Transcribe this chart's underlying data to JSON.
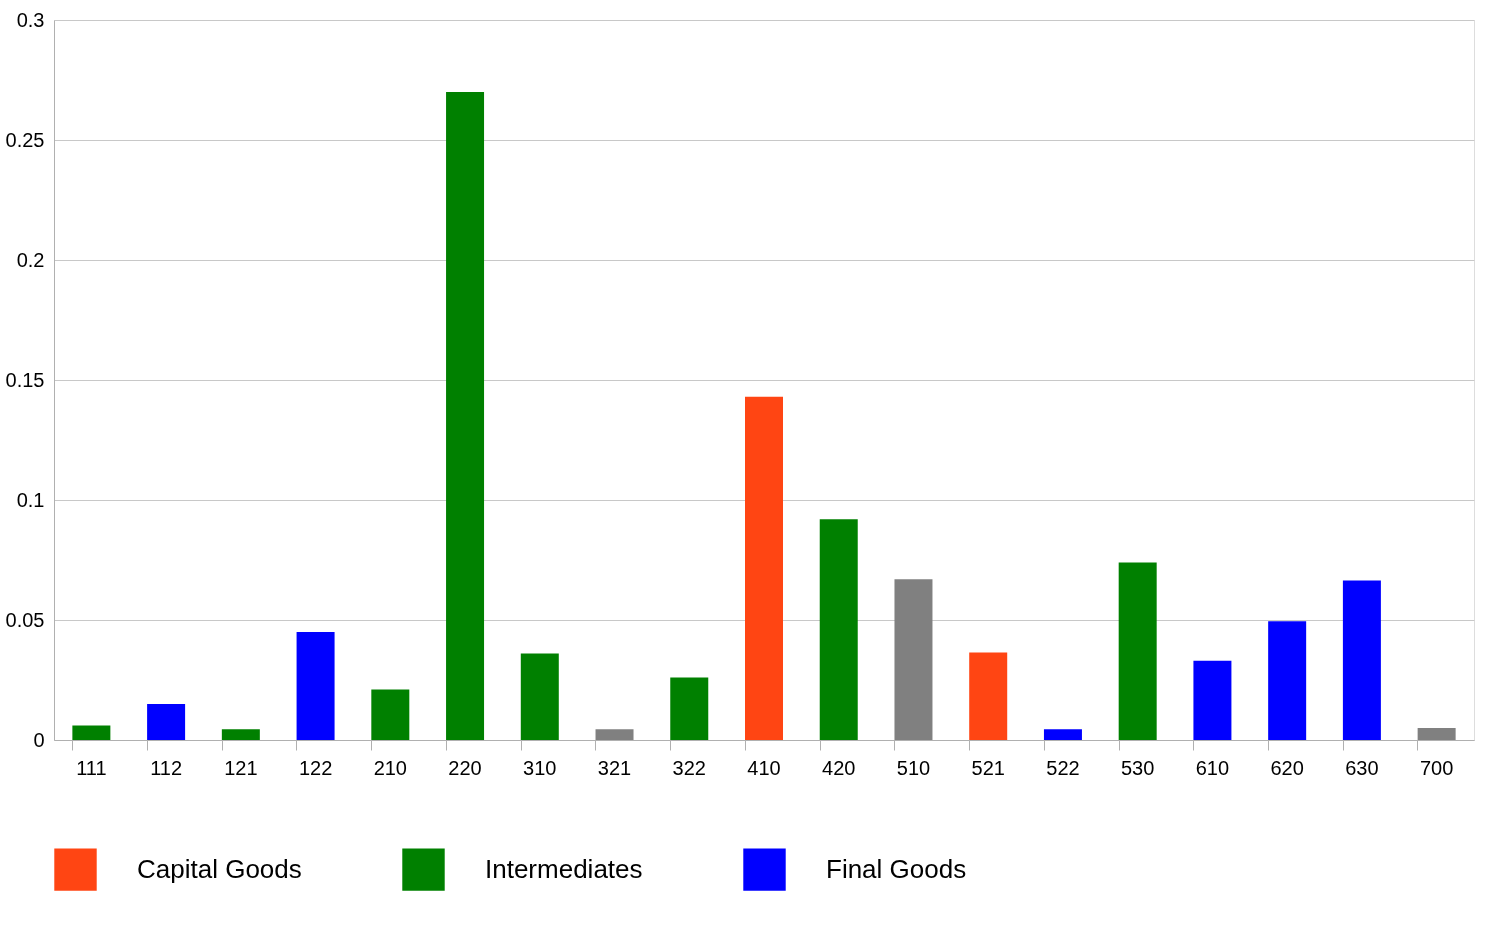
{
  "chart_data": {
    "type": "bar",
    "categories": [
      "111",
      "112",
      "121",
      "122",
      "210",
      "220",
      "310",
      "321",
      "322",
      "410",
      "420",
      "510",
      "521",
      "522",
      "530",
      "610",
      "620",
      "630",
      "700"
    ],
    "series": [
      {
        "name": "Capital Goods",
        "color": "#ff4513",
        "values": [
          null,
          null,
          null,
          null,
          null,
          null,
          null,
          null,
          null,
          0.143,
          null,
          null,
          0.0365,
          null,
          null,
          null,
          null,
          null,
          null
        ]
      },
      {
        "name": "Intermediates",
        "color": "#008000",
        "values": [
          0.006,
          null,
          0.0045,
          null,
          0.021,
          0.27,
          0.036,
          null,
          0.026,
          null,
          0.092,
          null,
          null,
          null,
          0.074,
          null,
          null,
          null,
          null
        ]
      },
      {
        "name": "Final Goods",
        "color": "#0000ff",
        "values": [
          null,
          0.015,
          null,
          0.045,
          null,
          null,
          null,
          null,
          null,
          null,
          null,
          null,
          null,
          0.0045,
          null,
          0.033,
          0.0495,
          0.0665,
          null
        ]
      },
      {
        "color": "#808080",
        "values": [
          null,
          null,
          null,
          null,
          null,
          null,
          null,
          0.0045,
          null,
          null,
          null,
          0.067,
          null,
          null,
          null,
          null,
          null,
          null,
          0.005
        ]
      }
    ],
    "ylim": [
      0,
      0.3
    ],
    "yticks": [
      0,
      0.05,
      0.1,
      0.15,
      0.2,
      0.25,
      0.3
    ],
    "grid": "y",
    "legend": "bottom"
  }
}
